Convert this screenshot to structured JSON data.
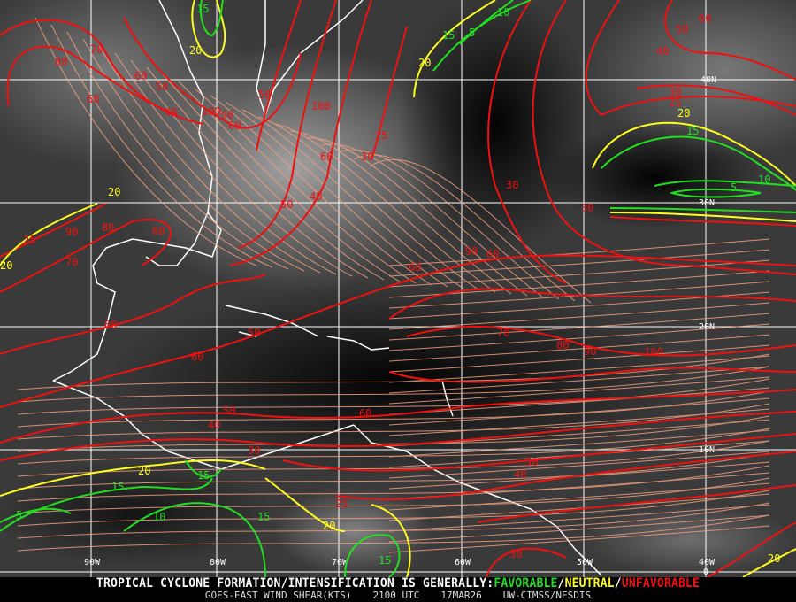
{
  "product": {
    "satellite_title": "GOES-EAST WIND SHEAR(KTS)",
    "time": "2100 UTC",
    "date": "17MAR26",
    "source": "UW-CIMSS/NESDIS"
  },
  "legend": {
    "prefix": "TROPICAL CYCLONE FORMATION/INTENSIFICATION IS GENERALLY:",
    "favorable": "FAVORABLE",
    "sep1": "/",
    "neutral": "NEUTRAL",
    "sep2": "/",
    "unfavorable": "UNFAVORABLE",
    "colors": {
      "favorable": "#22dd22",
      "neutral": "#ffff22",
      "unfavorable": "#ee1111"
    }
  },
  "grid": {
    "longitudes": [
      "90W",
      "80W",
      "70W",
      "60W",
      "50W",
      "40W"
    ],
    "latitudes": [
      "40N",
      "30N",
      "20N",
      "10N",
      "0"
    ]
  },
  "contour_labels": {
    "unfavorable": [
      "70",
      "80",
      "60",
      "60",
      "50",
      "40",
      "100",
      "90",
      "60",
      "50",
      "100",
      "60",
      "25",
      "30",
      "40",
      "50",
      "30",
      "30",
      "40",
      "50",
      "60",
      "30",
      "25",
      "90",
      "70",
      "25",
      "60",
      "80",
      "60",
      "90",
      "60",
      "60",
      "50",
      "60",
      "70",
      "80",
      "90",
      "100",
      "60",
      "50",
      "40",
      "30",
      "25",
      "50",
      "40",
      "30"
    ],
    "neutral": [
      "20",
      "20",
      "20",
      "20",
      "20",
      "20",
      "20",
      "20"
    ],
    "favorable": [
      "15",
      "10",
      "5",
      "15",
      "15",
      "10",
      "5",
      "15",
      "15",
      "5",
      "10",
      "15",
      "15"
    ]
  },
  "colors": {
    "streamlines": "#f0a080",
    "coastline": "#ffffff",
    "gridlines": "#ffffff"
  }
}
